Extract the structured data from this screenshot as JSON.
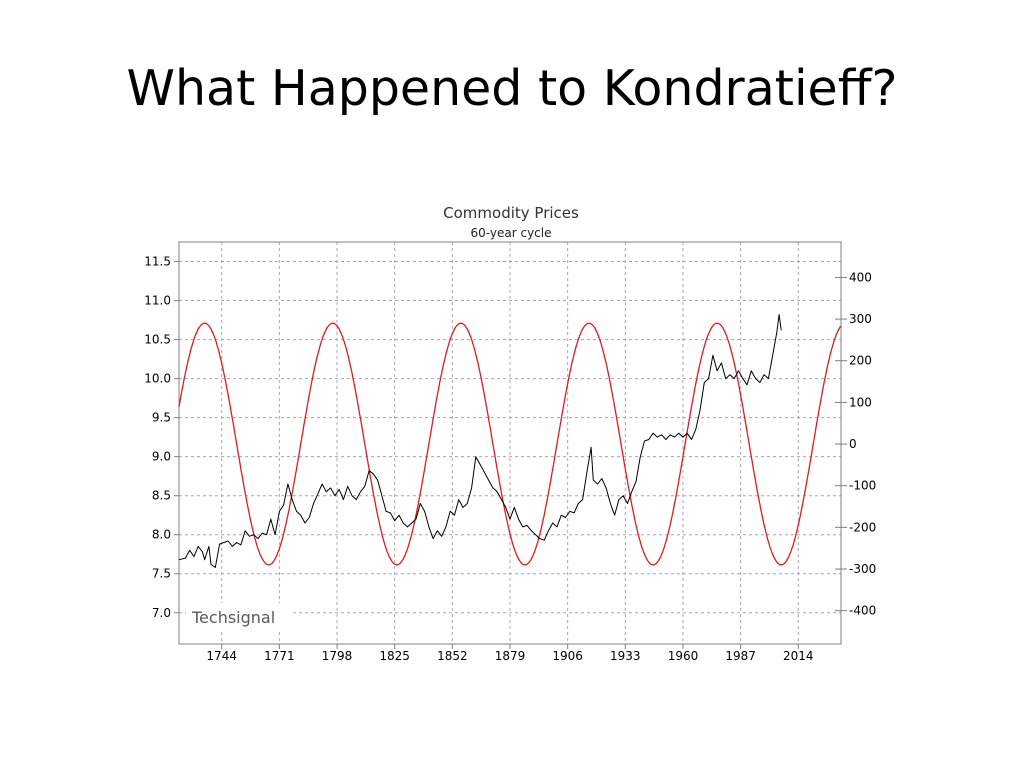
{
  "slide": {
    "title": "What Happened to Kondratieff?"
  },
  "chart_data": {
    "type": "line",
    "title": "Commodity Prices",
    "subtitle": "60-year cycle",
    "watermark": "Techsignal",
    "grid": true,
    "x_range": [
      1724,
      2034
    ],
    "x_ticks": [
      1744,
      1771,
      1798,
      1825,
      1852,
      1879,
      1906,
      1933,
      1960,
      1987,
      2014
    ],
    "y_left": {
      "range": [
        6.6,
        11.75
      ],
      "ticks": [
        7.0,
        7.5,
        8.0,
        8.5,
        9.0,
        9.5,
        10.0,
        10.5,
        11.0,
        11.5
      ]
    },
    "y_right": {
      "range": [
        -480,
        485
      ],
      "ticks": [
        400,
        300,
        200,
        100,
        0,
        -100,
        -200,
        -300,
        -400
      ]
    },
    "colors": {
      "price": "#000000",
      "cycle": "#e41a1c",
      "grid": "#a8a8a8",
      "axis": "#808080"
    },
    "series": [
      {
        "axis": "left",
        "points": [
          [
            1724,
            7.68
          ],
          [
            1727,
            7.7
          ],
          [
            1729,
            7.8
          ],
          [
            1731,
            7.72
          ],
          [
            1733,
            7.85
          ],
          [
            1735,
            7.78
          ],
          [
            1736,
            7.68
          ],
          [
            1738,
            7.85
          ],
          [
            1739,
            7.62
          ],
          [
            1741,
            7.58
          ],
          [
            1743,
            7.88
          ],
          [
            1745,
            7.9
          ],
          [
            1747,
            7.92
          ],
          [
            1749,
            7.85
          ],
          [
            1751,
            7.9
          ],
          [
            1753,
            7.87
          ],
          [
            1755,
            8.05
          ],
          [
            1757,
            7.98
          ],
          [
            1759,
            8.0
          ],
          [
            1761,
            7.95
          ],
          [
            1763,
            8.02
          ],
          [
            1765,
            8.0
          ],
          [
            1767,
            8.2
          ],
          [
            1769,
            8.0
          ],
          [
            1771,
            8.3
          ],
          [
            1773,
            8.38
          ],
          [
            1775,
            8.65
          ],
          [
            1777,
            8.45
          ],
          [
            1779,
            8.3
          ],
          [
            1781,
            8.25
          ],
          [
            1783,
            8.15
          ],
          [
            1785,
            8.22
          ],
          [
            1787,
            8.4
          ],
          [
            1789,
            8.52
          ],
          [
            1791,
            8.65
          ],
          [
            1793,
            8.55
          ],
          [
            1795,
            8.6
          ],
          [
            1797,
            8.5
          ],
          [
            1799,
            8.58
          ],
          [
            1801,
            8.45
          ],
          [
            1803,
            8.62
          ],
          [
            1805,
            8.5
          ],
          [
            1807,
            8.45
          ],
          [
            1809,
            8.55
          ],
          [
            1811,
            8.62
          ],
          [
            1813,
            8.82
          ],
          [
            1815,
            8.78
          ],
          [
            1817,
            8.7
          ],
          [
            1819,
            8.5
          ],
          [
            1821,
            8.3
          ],
          [
            1823,
            8.28
          ],
          [
            1825,
            8.18
          ],
          [
            1827,
            8.25
          ],
          [
            1829,
            8.15
          ],
          [
            1831,
            8.1
          ],
          [
            1833,
            8.15
          ],
          [
            1835,
            8.2
          ],
          [
            1837,
            8.4
          ],
          [
            1839,
            8.3
          ],
          [
            1841,
            8.1
          ],
          [
            1843,
            7.95
          ],
          [
            1845,
            8.05
          ],
          [
            1847,
            7.98
          ],
          [
            1849,
            8.1
          ],
          [
            1851,
            8.3
          ],
          [
            1853,
            8.25
          ],
          [
            1855,
            8.45
          ],
          [
            1857,
            8.35
          ],
          [
            1859,
            8.4
          ],
          [
            1861,
            8.6
          ],
          [
            1863,
            9.0
          ],
          [
            1865,
            8.9
          ],
          [
            1867,
            8.8
          ],
          [
            1869,
            8.7
          ],
          [
            1871,
            8.6
          ],
          [
            1873,
            8.55
          ],
          [
            1875,
            8.45
          ],
          [
            1877,
            8.35
          ],
          [
            1879,
            8.2
          ],
          [
            1881,
            8.35
          ],
          [
            1883,
            8.2
          ],
          [
            1885,
            8.1
          ],
          [
            1887,
            8.12
          ],
          [
            1889,
            8.05
          ],
          [
            1891,
            8.0
          ],
          [
            1893,
            7.95
          ],
          [
            1895,
            7.93
          ],
          [
            1897,
            8.05
          ],
          [
            1899,
            8.15
          ],
          [
            1901,
            8.1
          ],
          [
            1903,
            8.25
          ],
          [
            1905,
            8.22
          ],
          [
            1907,
            8.3
          ],
          [
            1909,
            8.28
          ],
          [
            1911,
            8.4
          ],
          [
            1913,
            8.45
          ],
          [
            1915,
            8.8
          ],
          [
            1917,
            9.12
          ],
          [
            1918,
            8.7
          ],
          [
            1920,
            8.65
          ],
          [
            1922,
            8.72
          ],
          [
            1924,
            8.6
          ],
          [
            1926,
            8.4
          ],
          [
            1928,
            8.25
          ],
          [
            1930,
            8.45
          ],
          [
            1932,
            8.5
          ],
          [
            1934,
            8.4
          ],
          [
            1936,
            8.55
          ],
          [
            1938,
            8.68
          ],
          [
            1940,
            9.0
          ],
          [
            1942,
            9.2
          ],
          [
            1944,
            9.22
          ],
          [
            1946,
            9.3
          ],
          [
            1948,
            9.25
          ],
          [
            1950,
            9.28
          ],
          [
            1952,
            9.22
          ],
          [
            1954,
            9.28
          ],
          [
            1956,
            9.25
          ],
          [
            1958,
            9.3
          ],
          [
            1960,
            9.25
          ],
          [
            1962,
            9.3
          ],
          [
            1964,
            9.22
          ],
          [
            1966,
            9.35
          ],
          [
            1968,
            9.6
          ],
          [
            1970,
            9.95
          ],
          [
            1972,
            10.0
          ],
          [
            1974,
            10.3
          ],
          [
            1976,
            10.1
          ],
          [
            1978,
            10.2
          ],
          [
            1980,
            10.0
          ],
          [
            1982,
            10.05
          ],
          [
            1984,
            10.0
          ],
          [
            1986,
            10.1
          ],
          [
            1988,
            10.0
          ],
          [
            1990,
            9.92
          ],
          [
            1992,
            10.1
          ],
          [
            1994,
            10.0
          ],
          [
            1996,
            9.95
          ],
          [
            1998,
            10.05
          ],
          [
            2000,
            10.0
          ],
          [
            2002,
            10.3
          ],
          [
            2004,
            10.6
          ],
          [
            2005,
            10.82
          ],
          [
            2006,
            10.62
          ]
        ]
      },
      {
        "axis": "right",
        "cycle": {
          "period_years": 60,
          "amplitude": 290,
          "peak_years": [
            1736,
            1797,
            1858,
            1919,
            1983
          ]
        }
      }
    ]
  }
}
